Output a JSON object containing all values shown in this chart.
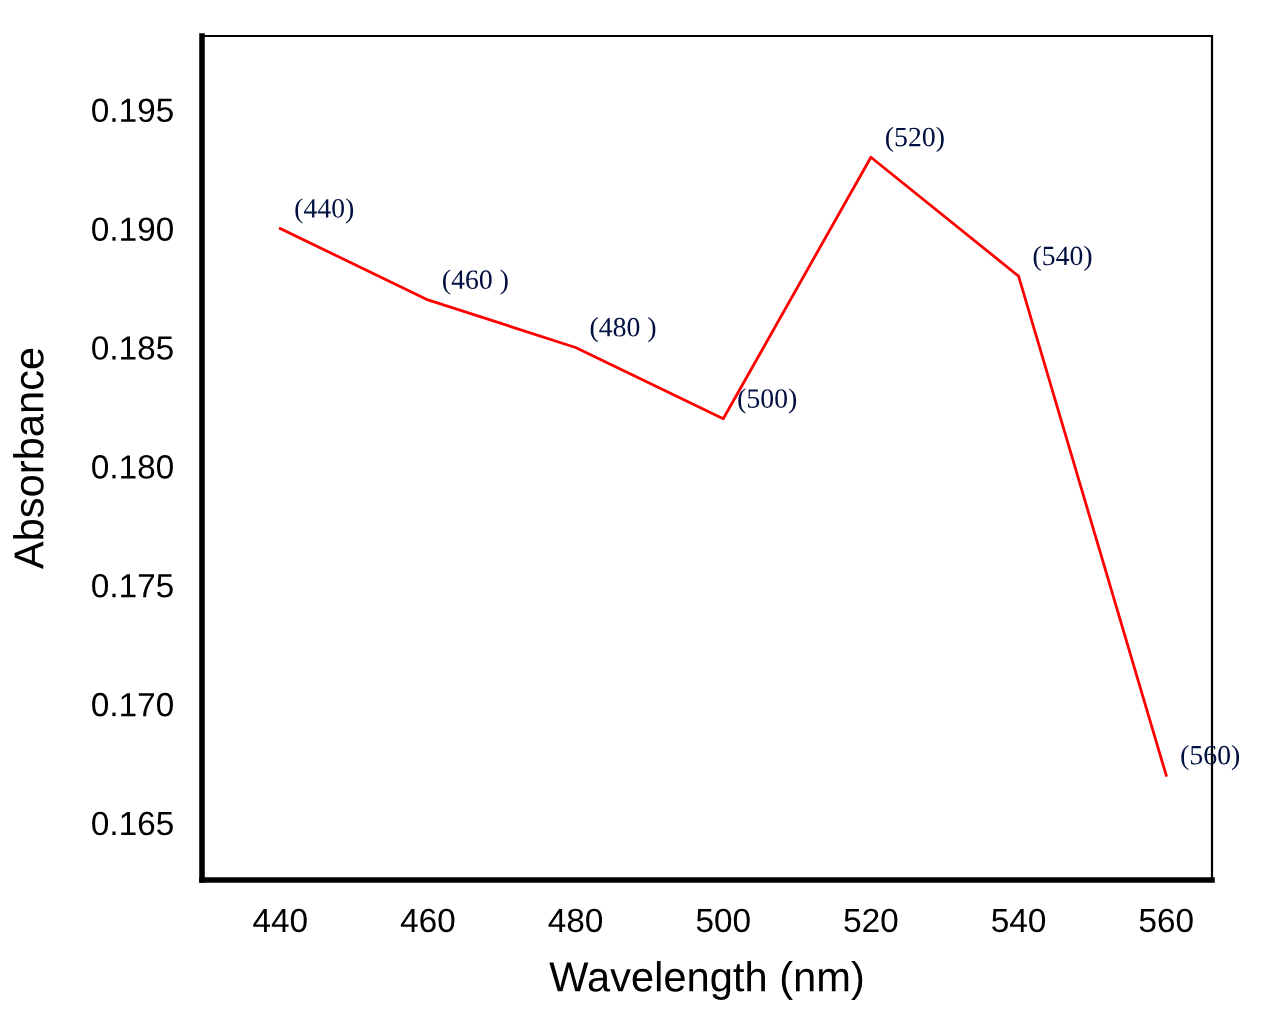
{
  "chart_data": {
    "type": "line",
    "xlabel": "Wavelength (nm)",
    "ylabel": "Absorbance",
    "x": [
      440,
      460,
      480,
      500,
      520,
      540,
      560
    ],
    "series": [
      {
        "color": "#ff0000",
        "values": [
          0.19,
          0.187,
          0.185,
          0.182,
          0.193,
          0.188,
          0.167
        ]
      }
    ],
    "xlim": [
      429.4,
      566.2
    ],
    "ylim": [
      0.1626,
      0.1981
    ],
    "xticks": [
      440,
      460,
      480,
      500,
      520,
      540,
      560
    ],
    "yticks": [
      0.165,
      {
        "value": 0.17,
        "label": "0.170"
      },
      0.175,
      {
        "value": 0.18,
        "label": "0.180"
      },
      0.185,
      {
        "value": 0.19,
        "label": "0.190"
      },
      0.195
    ],
    "grid": false,
    "legend": false,
    "annotations": [
      {
        "text": "(440)",
        "x": 440,
        "y": 0.19
      },
      {
        "text": "(460 )",
        "x": 460,
        "y": 0.187
      },
      {
        "text": "(480 )",
        "x": 480,
        "y": 0.185
      },
      {
        "text": "(500)",
        "x": 500,
        "y": 0.182
      },
      {
        "text": "(520)",
        "x": 520,
        "y": 0.193
      },
      {
        "text": "(540)",
        "x": 540,
        "y": 0.188
      },
      {
        "text": "(560)",
        "x": 560,
        "y": 0.167
      }
    ]
  }
}
